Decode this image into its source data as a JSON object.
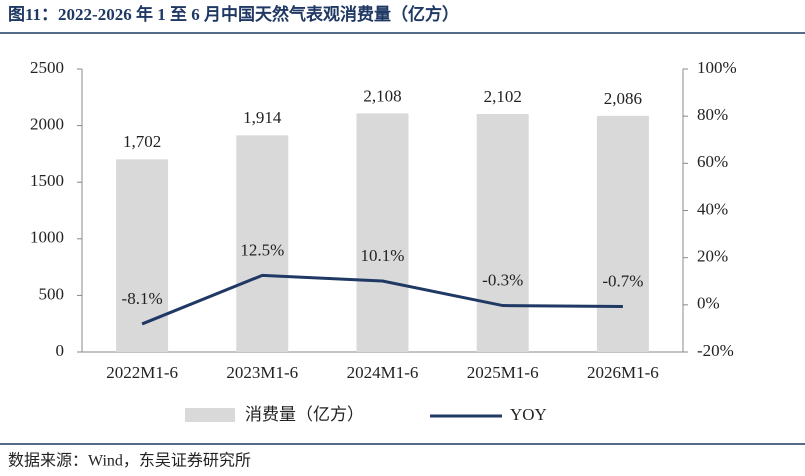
{
  "chart_data": {
    "type": "bar",
    "title": "图11：2022-2026 年 1 至 6 月中国天然气表观消费量（亿方）",
    "source": "数据来源：Wind，东吴证券研究所",
    "categories": [
      "2022M1-6",
      "2023M1-6",
      "2024M1-6",
      "2025M1-6",
      "2026M1-6"
    ],
    "series": [
      {
        "name": "消费量（亿方）",
        "type": "bar",
        "color": "#d9d9d9",
        "values": [
          1702,
          1914,
          2108,
          2102,
          2086
        ],
        "value_labels": [
          "1,702",
          "1,914",
          "2,108",
          "2,102",
          "2,086"
        ]
      },
      {
        "name": "YOY",
        "type": "line",
        "axis": "y2",
        "color": "#1f3864",
        "values": [
          -8.1,
          12.5,
          10.1,
          -0.3,
          -0.7
        ],
        "value_labels": [
          "-8.1%",
          "12.5%",
          "10.1%",
          "-0.3%",
          "-0.7%"
        ]
      }
    ],
    "ylim": [
      0,
      2500
    ],
    "yticks": [
      0,
      500,
      1000,
      1500,
      2000,
      2500
    ],
    "y2lim": [
      -20,
      100
    ],
    "y2ticks": [
      {
        "value": -20,
        "label": "-20%"
      },
      {
        "value": 0,
        "label": "0%"
      },
      {
        "value": 20,
        "label": "20%"
      },
      {
        "value": 40,
        "label": "40%"
      },
      {
        "value": 60,
        "label": "60%"
      },
      {
        "value": 80,
        "label": "80%"
      },
      {
        "value": 100,
        "label": "100%"
      }
    ],
    "grid": false
  }
}
